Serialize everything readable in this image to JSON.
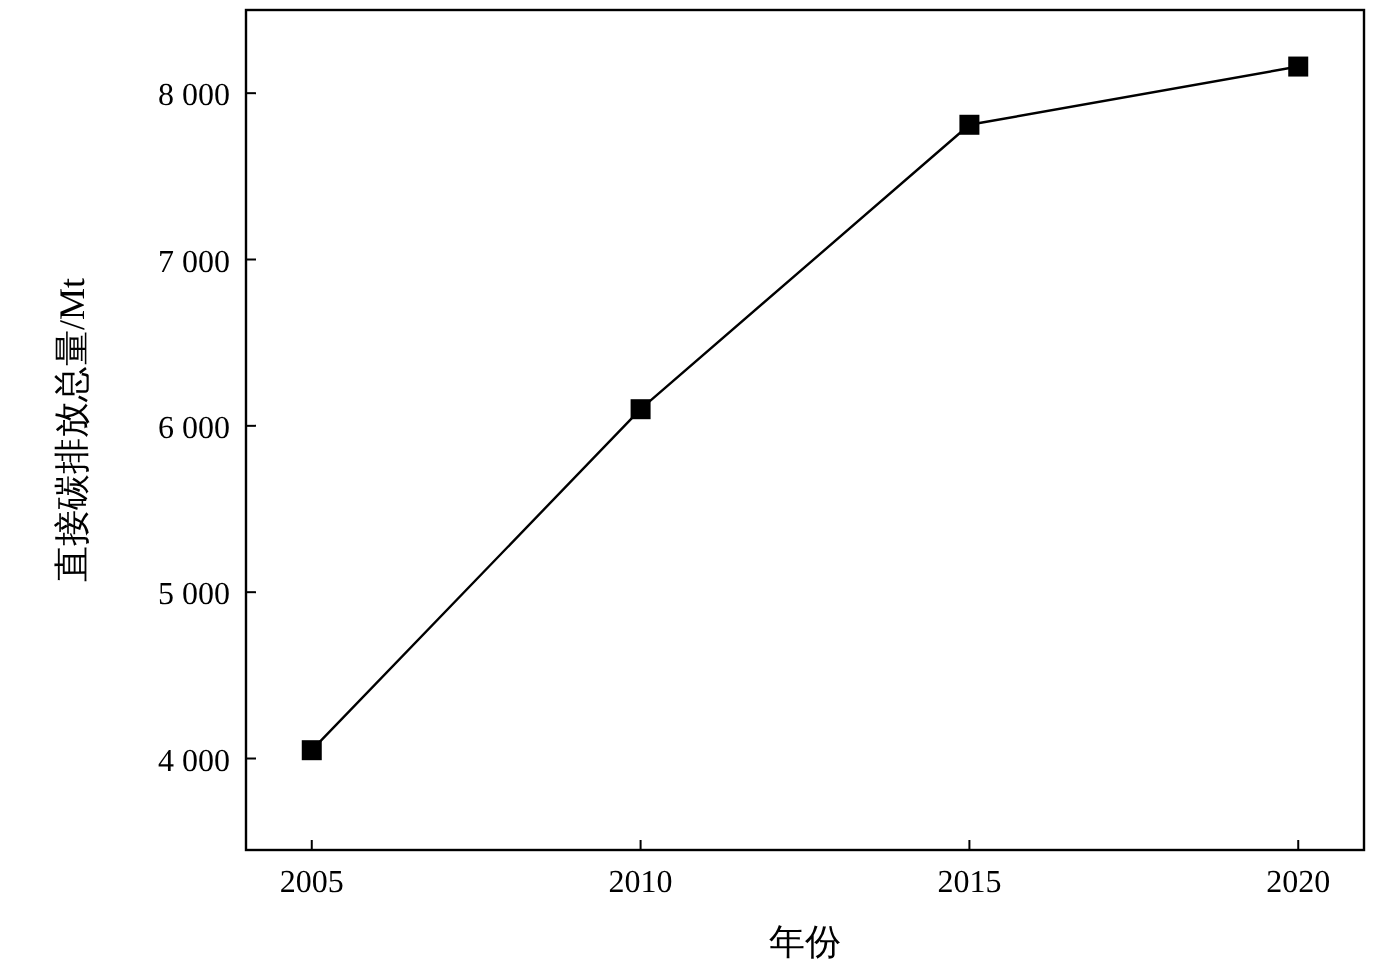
{
  "chart_data": {
    "type": "line",
    "xlabel": "年份",
    "ylabel": "直接碳排放总量/Mt",
    "x": [
      2005,
      2010,
      2015,
      2020
    ],
    "values": [
      4050,
      6100,
      7810,
      8160
    ],
    "color": "#000000",
    "marker": "square",
    "line_style": "solid",
    "xlim": [
      2004,
      2021
    ],
    "ylim": [
      3450,
      8500
    ],
    "xticks": [
      2005,
      2010,
      2015,
      2020
    ],
    "yticks": [
      {
        "value": 4000,
        "label": "4 000"
      },
      {
        "value": 5000,
        "label": "5 000"
      },
      {
        "value": 6000,
        "label": "6 000"
      },
      {
        "value": 7000,
        "label": "7 000"
      },
      {
        "value": 8000,
        "label": "8 000"
      }
    ]
  }
}
